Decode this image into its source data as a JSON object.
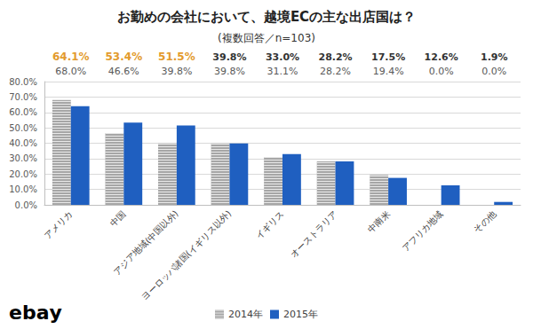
{
  "chart_data": {
    "type": "bar",
    "title": "お勤めの会社において、越境ECの主な出店国は？",
    "subtitle": "(複数回答／n=103)",
    "categories": [
      "アメリカ",
      "中国",
      "アジア地域(中国以外)",
      "ヨーロッパ諸国(イギリス以外)",
      "イギリス",
      "オーストラリア",
      "中南米",
      "アフリカ地域",
      "その他"
    ],
    "series": [
      {
        "name": "2014年",
        "color": "#a6a6a6",
        "values": [
          68.0,
          46.6,
          39.8,
          39.8,
          31.1,
          28.2,
          19.4,
          0.0,
          0.0
        ],
        "value_labels": [
          "68.0%",
          "46.6%",
          "39.8%",
          "39.8%",
          "31.1%",
          "28.2%",
          "19.4%",
          "0.0%",
          "0.0%"
        ]
      },
      {
        "name": "2015年",
        "color": "#1f5fc0",
        "values": [
          64.1,
          53.4,
          51.5,
          39.8,
          33.0,
          28.2,
          17.5,
          12.6,
          1.9
        ],
        "value_labels": [
          "64.1%",
          "53.4%",
          "51.5%",
          "39.8%",
          "33.0%",
          "28.2%",
          "17.5%",
          "12.6%",
          "1.9%"
        ]
      }
    ],
    "ylim": [
      0,
      80
    ],
    "yticks": [
      {
        "value": 0,
        "label": "0.0%"
      },
      {
        "value": 10,
        "label": "10.0%"
      },
      {
        "value": 20,
        "label": "20.0%"
      },
      {
        "value": 30,
        "label": "30.0%"
      },
      {
        "value": 40,
        "label": "40.0%"
      },
      {
        "value": 50,
        "label": "50.0%"
      },
      {
        "value": 60,
        "label": "60.0%"
      },
      {
        "value": 70,
        "label": "70.0%"
      },
      {
        "value": 80,
        "label": "80.0%"
      }
    ],
    "grid": true,
    "legend": "bottom",
    "data_labels": true,
    "annotations": [
      "ebay"
    ]
  }
}
